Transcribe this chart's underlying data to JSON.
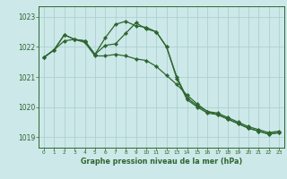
{
  "xlabel": "Graphe pression niveau de la mer (hPa)",
  "background_color": "#cce8e8",
  "line_color": "#2d6630",
  "grid_color": "#a8cccc",
  "ylim": [
    1018.65,
    1023.35
  ],
  "xlim": [
    -0.5,
    23.5
  ],
  "yticks": [
    1019,
    1020,
    1021,
    1022,
    1023
  ],
  "xticks": [
    0,
    1,
    2,
    3,
    4,
    5,
    6,
    7,
    8,
    9,
    10,
    11,
    12,
    13,
    14,
    15,
    16,
    17,
    18,
    19,
    20,
    21,
    22,
    23
  ],
  "series": [
    [
      1021.65,
      1021.9,
      1022.4,
      1022.25,
      1022.2,
      1021.75,
      1022.3,
      1022.75,
      1022.85,
      1022.7,
      1022.65,
      1022.5,
      1022.0,
      1021.0,
      1020.3,
      1020.05,
      1019.85,
      1019.8,
      1019.65,
      1019.5,
      1019.35,
      1019.25,
      1019.15,
      1019.2
    ],
    [
      1021.65,
      1021.9,
      1022.4,
      1022.25,
      1022.2,
      1021.75,
      1022.05,
      1022.1,
      1022.45,
      1022.8,
      1022.6,
      1022.5,
      1022.0,
      1020.95,
      1020.25,
      1020.0,
      1019.8,
      1019.75,
      1019.6,
      1019.45,
      1019.3,
      1019.2,
      1019.1,
      1019.15
    ],
    [
      1021.65,
      1021.9,
      1022.2,
      1022.25,
      1022.15,
      1021.7,
      1021.7,
      1021.75,
      1021.7,
      1021.6,
      1021.55,
      1021.35,
      1021.05,
      1020.75,
      1020.4,
      1020.1,
      1019.85,
      1019.75,
      1019.6,
      1019.45,
      1019.3,
      1019.2,
      1019.1,
      1019.15
    ]
  ]
}
